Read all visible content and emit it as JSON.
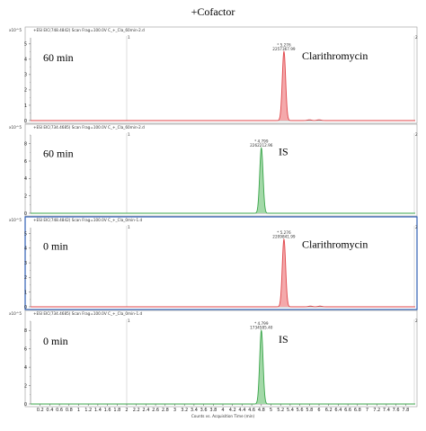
{
  "figure": {
    "title": "+Cofactor",
    "frame_color": "#9a9a9a",
    "selected_frame_color": "#2f5fb5",
    "grid_color": "#cfcfcf",
    "xlabel": "Counts vs. Acquisition Time (min)",
    "x_tick_labels": [
      "0.2",
      "0.4",
      "0.6",
      "0.8",
      "1",
      "1.2",
      "1.4",
      "1.6",
      "1.8",
      "2",
      "2.2",
      "2.4",
      "2.6",
      "2.8",
      "3",
      "3.2",
      "3.4",
      "3.6",
      "3.8",
      "4",
      "4.2",
      "4.4",
      "4.6",
      "4.8",
      "5",
      "5.2",
      "5.4",
      "5.6",
      "5.8",
      "6",
      "6.2",
      "6.4",
      "6.6",
      "6.8",
      "7",
      "7.2",
      "7.4",
      "7.6",
      "7.8"
    ]
  },
  "chart_data": [
    {
      "type": "line",
      "header": "+ESI EIC(748.4842) Scan Frag=100.0V C_+_Cla_60min-2.d",
      "y_exponent": "x10^5",
      "y_tick_labels": [
        "0",
        "1",
        "2",
        "3",
        "4",
        "5"
      ],
      "ylim": [
        0,
        5.4
      ],
      "xlim": [
        0,
        8
      ],
      "sample_label": "60 min",
      "compound_label": "Clarithromycin",
      "selected": false,
      "color": "#e0454a",
      "fill": "#f4a9ab",
      "peak": {
        "rt": 5.27,
        "height": 4.5,
        "rt_label": "* 5.276",
        "area_label": "2257367.99"
      },
      "side_peaks": [
        {
          "rt": 5.8,
          "height": 0.05
        },
        {
          "rt": 6.0,
          "height": 0.05
        }
      ],
      "end_markers": [
        "1",
        "2"
      ]
    },
    {
      "type": "line",
      "header": "+ESI EIC(734.4685) Scan Frag=100.0V C_+_Cla_60min-2.d",
      "y_exponent": "x10^5",
      "y_tick_labels": [
        "0",
        "2",
        "4",
        "6",
        "8"
      ],
      "ylim": [
        0,
        9
      ],
      "xlim": [
        0,
        8
      ],
      "sample_label": "60 min",
      "compound_label": "IS",
      "selected": false,
      "color": "#3aa54a",
      "fill": "#a3d9a8",
      "peak": {
        "rt": 4.8,
        "height": 7.5,
        "rt_label": "* 4.799",
        "area_label": "2262212.96"
      },
      "side_peaks": [],
      "end_markers": [
        "1",
        "2"
      ]
    },
    {
      "type": "line",
      "header": "+ESI EIC(748.4842) Scan Frag=100.0V C_+_Cla_0min-1.d",
      "y_exponent": "x10^5",
      "y_tick_labels": [
        "0",
        "1",
        "2",
        "3",
        "4",
        "5"
      ],
      "ylim": [
        0,
        5.4
      ],
      "xlim": [
        0,
        8
      ],
      "sample_label": "0 min",
      "compound_label": "Clarithromycin",
      "selected": true,
      "color": "#e0454a",
      "fill": "#f4a9ab",
      "peak": {
        "rt": 5.27,
        "height": 4.6,
        "rt_label": "* 5.276",
        "area_label": "2209841.99"
      },
      "side_peaks": [
        {
          "rt": 5.82,
          "height": 0.05
        },
        {
          "rt": 6.02,
          "height": 0.05
        }
      ],
      "end_markers": [
        "1",
        "2"
      ]
    },
    {
      "type": "line",
      "header": "+ESI EIC(734.4685) Scan Frag=100.0V C_+_Cla_0min-1.d",
      "y_exponent": "x10^5",
      "y_tick_labels": [
        "0",
        "2",
        "4",
        "6",
        "8"
      ],
      "ylim": [
        0,
        9
      ],
      "xlim": [
        0,
        8
      ],
      "sample_label": "0 min",
      "compound_label": "IS",
      "selected": false,
      "color": "#3aa54a",
      "fill": "#a3d9a8",
      "peak": {
        "rt": 4.8,
        "height": 8.0,
        "rt_label": "* 4.799",
        "area_label": "1734585.40"
      },
      "side_peaks": [],
      "end_markers": [
        "1",
        "2"
      ]
    }
  ]
}
